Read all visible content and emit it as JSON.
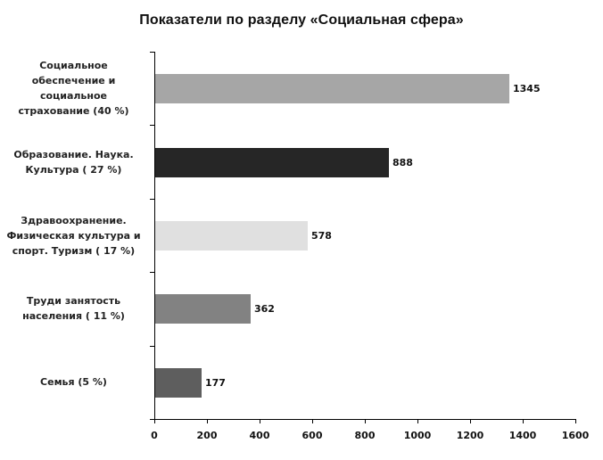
{
  "title": "Показатели по разделу «Социальная сфера»",
  "chart_data": {
    "type": "bar",
    "orientation": "horizontal",
    "title": "Показатели по разделу «Социальная сфера»",
    "xlabel": "",
    "ylabel": "",
    "xlim": [
      0,
      1600
    ],
    "grid": false,
    "legend": null,
    "categories": [
      "Социальное обеспечение и социальное страхование (40 %)",
      "Образование. Наука. Культура ( 27 %)",
      "Здравоохранение. Физическая культура и спорт. Туризм ( 17 %)",
      "Труди занятость населения ( 11 %)",
      "Семья (5 %)"
    ],
    "values": [
      1345,
      888,
      578,
      362,
      177
    ],
    "bar_colors": [
      "#a6a6a6",
      "#262626",
      "#e0e0e0",
      "#828282",
      "#5e5e5e"
    ],
    "data_labels": [
      "1345",
      "888",
      "578",
      "362",
      "177"
    ],
    "x_ticks": [
      "0",
      "200",
      "400",
      "600",
      "800",
      "1000",
      "1200",
      "1400",
      "1600"
    ]
  },
  "category_lines": [
    [
      "Социальное",
      "обеспечение и",
      "социальное",
      "страхование (40 %)"
    ],
    [
      "Образование. Наука.",
      "Культура ( 27 %)"
    ],
    [
      "Здравоохранение.",
      "Физическая культура и",
      "спорт. Туризм ( 17 %)"
    ],
    [
      "Труди занятость",
      "населения ( 11 %)"
    ],
    [
      "Семья (5 %)"
    ]
  ]
}
